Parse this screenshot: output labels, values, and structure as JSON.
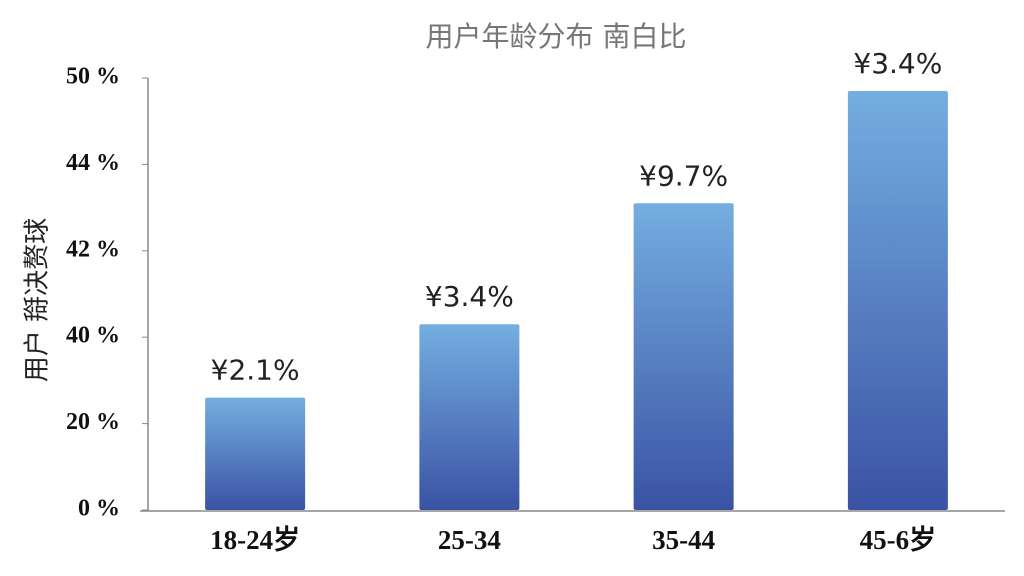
{
  "chart_data": {
    "type": "bar",
    "title": "用户年龄分布 南白比",
    "y_label": "用户 搿决赘球",
    "categories": [
      "18-24岁",
      "25-34",
      "35-44",
      "45-6岁"
    ],
    "values": [
      26,
      40.3,
      43.1,
      49.1
    ],
    "annotations": [
      "¥2.1%",
      "¥3.4%",
      "¥9.7%",
      "¥3.4%"
    ],
    "gradient": [
      "#74aee0",
      "#3a52a4"
    ],
    "ylim": [
      0,
      50
    ],
    "yticks": [
      {
        "value": 0,
        "label": "0 %"
      },
      {
        "value": 20,
        "label": "20 %"
      },
      {
        "value": 40,
        "label": "40 %"
      },
      {
        "value": 42,
        "label": "42 %"
      },
      {
        "value": 44,
        "label": "44 %"
      },
      {
        "value": 50,
        "label": "50 %"
      }
    ],
    "grid": false
  }
}
